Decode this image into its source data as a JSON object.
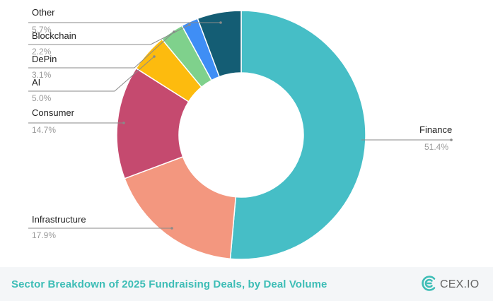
{
  "chart_data": {
    "type": "pie",
    "donut": true,
    "title": "Sector Breakdown of 2025 Fundraising  Deals, by Deal Volume",
    "unit": "%",
    "legend": "none",
    "slices": [
      {
        "label": "Finance",
        "value": 51.4,
        "value_label": "51.4%",
        "color": "#46bec6"
      },
      {
        "label": "Infrastructure",
        "value": 17.9,
        "value_label": "17.9%",
        "color": "#f3977f"
      },
      {
        "label": "Consumer",
        "value": 14.7,
        "value_label": "14.7%",
        "color": "#c54a6f"
      },
      {
        "label": "AI",
        "value": 5.0,
        "value_label": "5.0%",
        "color": "#fdbb0e"
      },
      {
        "label": "DePin",
        "value": 3.1,
        "value_label": "3.1%",
        "color": "#7fd18c"
      },
      {
        "label": "Blockchain",
        "value": 2.2,
        "value_label": "2.2%",
        "color": "#3f8ef5"
      },
      {
        "label": "Other",
        "value": 5.7,
        "value_label": "5.7%",
        "color": "#145d74"
      }
    ]
  },
  "footer": {
    "title": "Sector Breakdown of 2025 Fundraising  Deals, by Deal Volume",
    "brand_text": "CEX.IO",
    "brand_icon": "cex-io-logo-icon",
    "accent_color": "#3dbdb6"
  }
}
